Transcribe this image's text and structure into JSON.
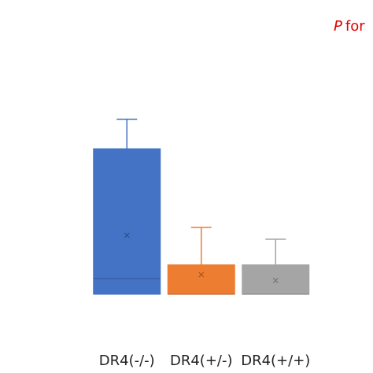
{
  "chart_data": {
    "type": "box",
    "annotation": {
      "symbol": "P",
      "text": "for"
    },
    "categories": [
      "DR4(-/-)",
      "DR4(+/-)",
      "DR4(+/+)"
    ],
    "ylim": [
      0,
      100
    ],
    "series": [
      {
        "color": "#4472c4",
        "min": 0,
        "q1": 0,
        "median": 8,
        "q3": 74,
        "max": 89,
        "mean": 30
      },
      {
        "color": "#ed7d31",
        "min": 0,
        "q1": 0,
        "median": 0,
        "q3": 15,
        "max": 34,
        "mean": 10
      },
      {
        "color": "#a5a5a5",
        "min": 0,
        "q1": 0,
        "median": 0,
        "q3": 15,
        "max": 28,
        "mean": 7
      }
    ]
  }
}
